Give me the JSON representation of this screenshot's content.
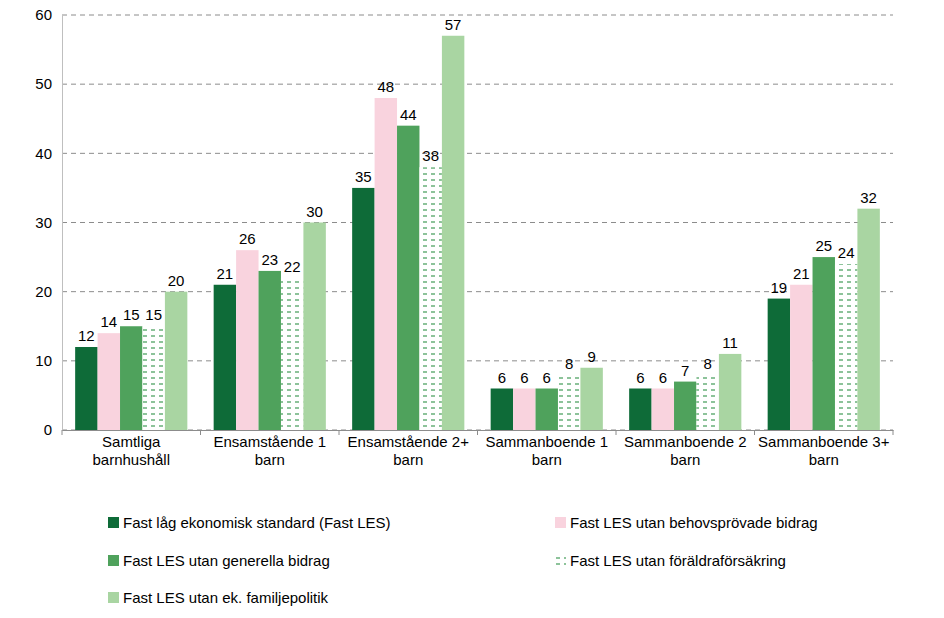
{
  "chart_data": {
    "type": "bar",
    "categories": [
      "Samtliga barnhushåll",
      "Ensamstående 1 barn",
      "Ensamstående 2+ barn",
      "Sammanboende 1 barn",
      "Sammanboende 2 barn",
      "Sammanboende 3+ barn"
    ],
    "series": [
      {
        "name": "Fast låg ekonomisk standard (Fast LES)",
        "color": "#0e6b38",
        "values": [
          12,
          21,
          35,
          6,
          6,
          19
        ]
      },
      {
        "name": "Fast LES utan behovsprövade bidrag",
        "color": "#f9d3de",
        "values": [
          14,
          26,
          48,
          6,
          6,
          21
        ]
      },
      {
        "name": "Fast LES utan generella bidrag",
        "color": "#4fa25c",
        "values": [
          15,
          23,
          44,
          6,
          7,
          25
        ]
      },
      {
        "name": "Fast LES utan föräldraförsäkring",
        "color": "#3f9a55",
        "line_style": "dotted",
        "values": [
          15,
          22,
          38,
          8,
          8,
          24
        ]
      },
      {
        "name": "Fast LES utan ek. familjepolitik",
        "color": "#a9d5a2",
        "values": [
          20,
          30,
          57,
          9,
          11,
          32
        ]
      }
    ],
    "ylim": [
      0,
      60
    ],
    "yticks": [
      0,
      10,
      20,
      30,
      40,
      50,
      60
    ],
    "grid": true,
    "data_labels": true,
    "legend": "bottom"
  }
}
